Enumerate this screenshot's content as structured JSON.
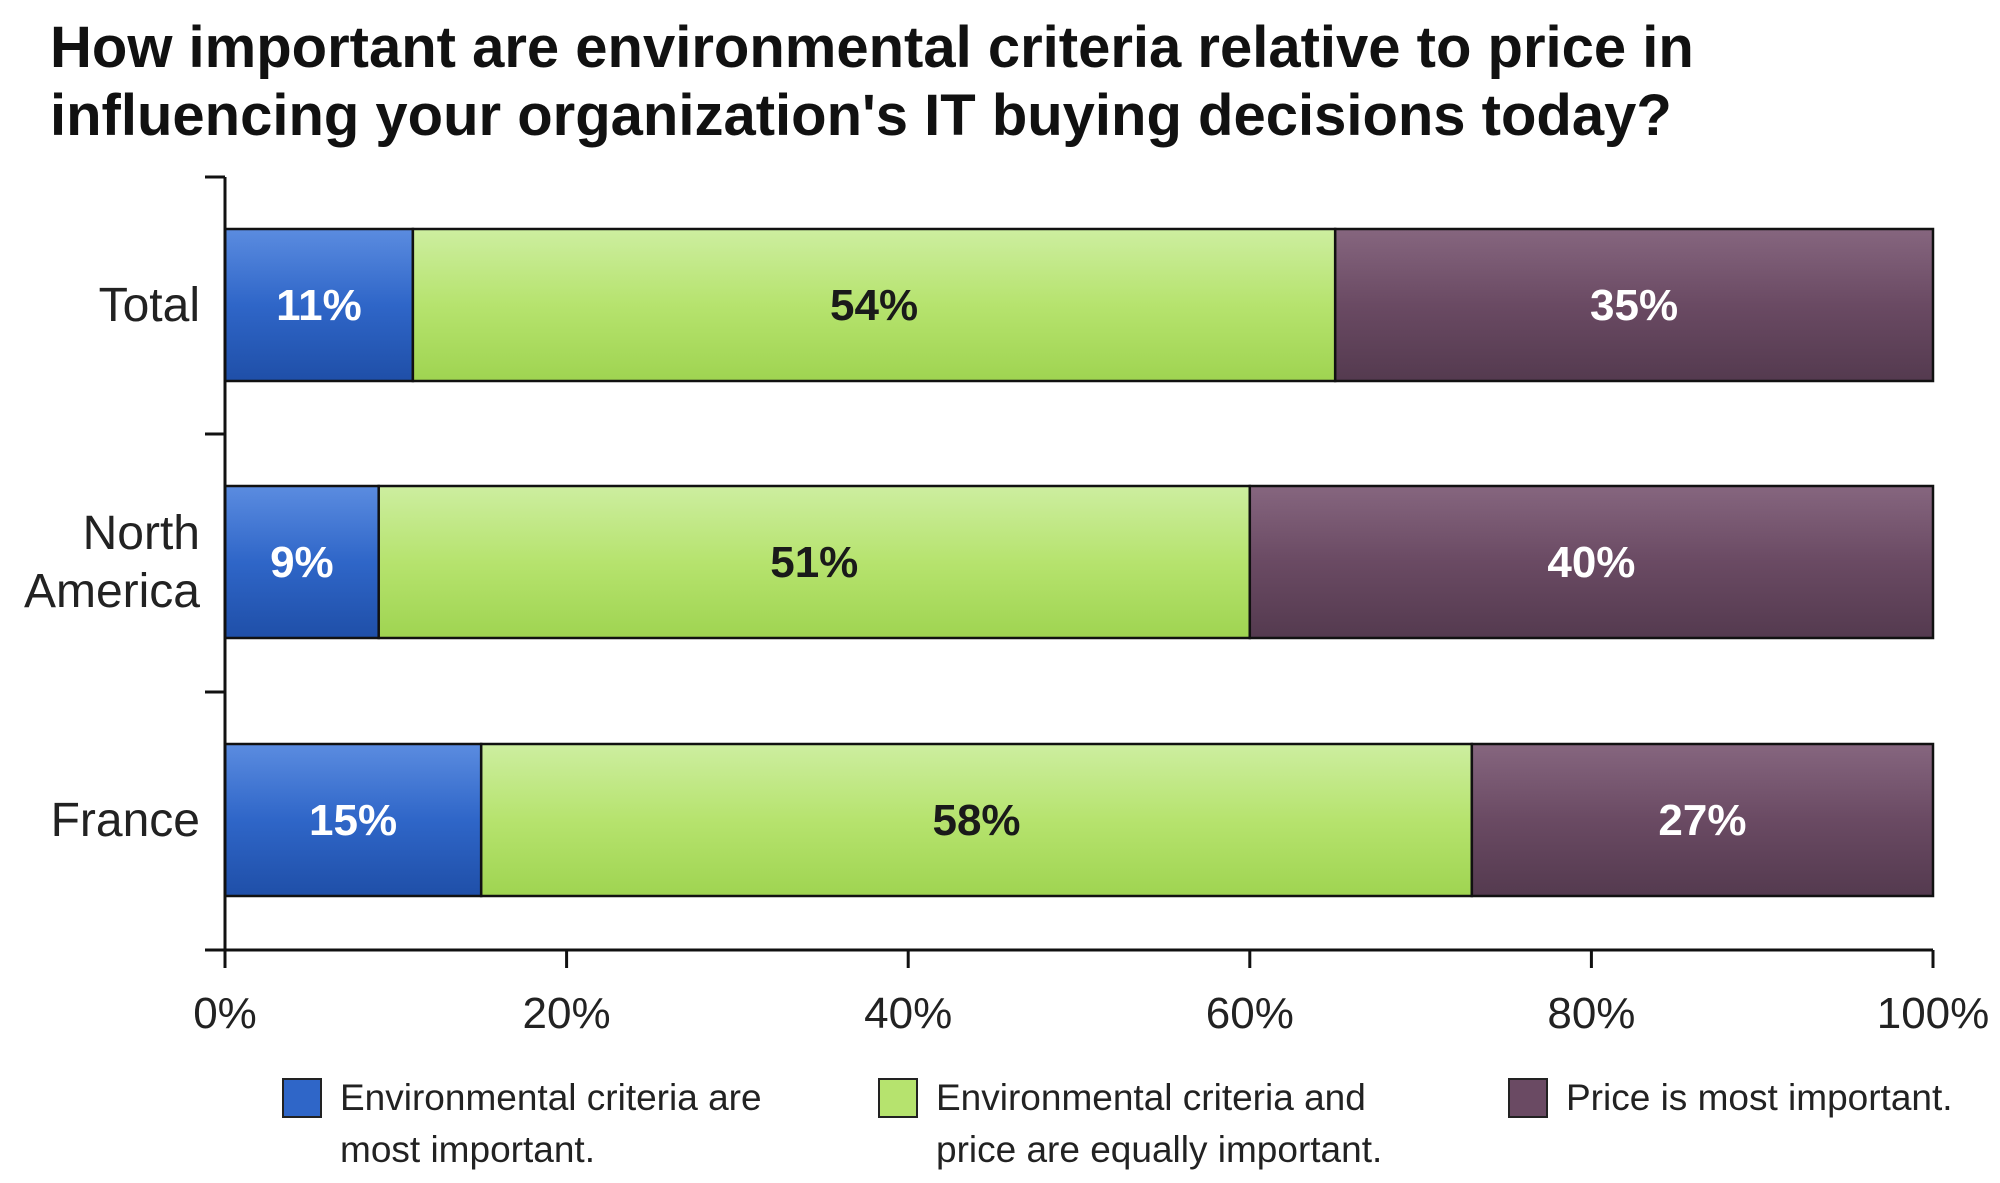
{
  "chart_data": {
    "type": "bar",
    "orientation": "horizontal",
    "stacked": true,
    "title": "How important are environmental criteria relative to price in influencing your organization's IT buying decisions today?",
    "categories": [
      "Total",
      "North America",
      "France"
    ],
    "category_lines": [
      [
        "Total"
      ],
      [
        "North",
        "America"
      ],
      [
        "France"
      ]
    ],
    "series": [
      {
        "name": "Environmental criteria are most important.",
        "legend_lines": [
          "Environmental criteria are",
          "most important."
        ],
        "values": [
          11,
          9,
          15
        ],
        "labels": [
          "11%",
          "9%",
          "15%"
        ],
        "color": "#2f66c8",
        "label_color": "#ffffff"
      },
      {
        "name": "Environmental criteria and price are equally important.",
        "legend_lines": [
          "Environmental criteria and",
          "price are equally important."
        ],
        "values": [
          54,
          51,
          58
        ],
        "labels": [
          "54%",
          "51%",
          "58%"
        ],
        "color": "#b6e36e",
        "label_color": "#1a1a1a"
      },
      {
        "name": "Price is most important.",
        "legend_lines": [
          "Price is most important."
        ],
        "values": [
          35,
          40,
          27
        ],
        "labels": [
          "35%",
          "40%",
          "27%"
        ],
        "color": "#6a4a63",
        "label_color": "#ffffff"
      }
    ],
    "xlim": [
      0,
      100
    ],
    "x_ticks": [
      0,
      20,
      40,
      60,
      80,
      100
    ],
    "x_tick_labels": [
      "0%",
      "20%",
      "40%",
      "60%",
      "80%",
      "100%"
    ],
    "xlabel": "",
    "ylabel": "",
    "grid": false,
    "legend_position": "bottom"
  }
}
